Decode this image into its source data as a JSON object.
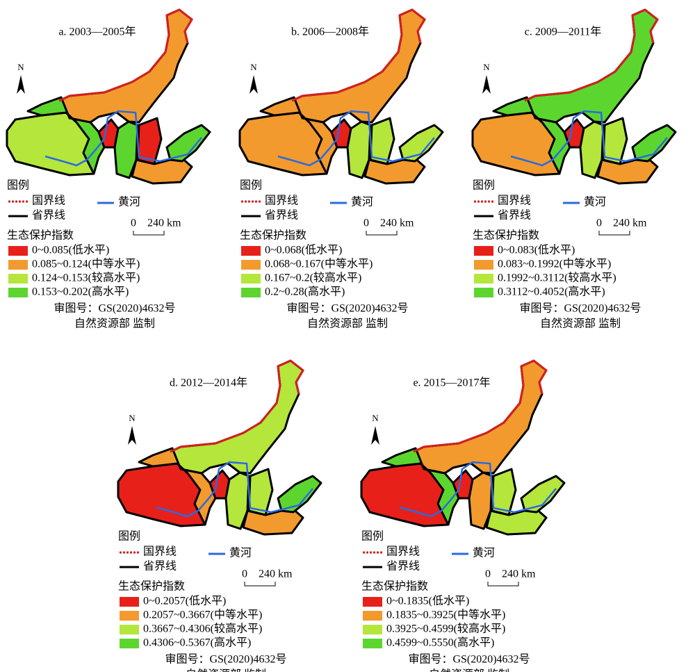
{
  "legend": {
    "title": "图例",
    "border": "国界线",
    "river": "黄河",
    "province": "省界线",
    "scale_start": "0",
    "scale_end": "240 km",
    "index_title": "生态保护指数",
    "north": "N",
    "review": "审图号：GS(2020)4632号",
    "supervisor": "自然资源部 监制"
  },
  "panels": [
    {
      "title": "a. 2003—2005年",
      "classes": [
        {
          "label": "0~0.085(低水平)",
          "color": "#e8201a"
        },
        {
          "label": "0.085~0.124(中等水平)",
          "color": "#f29a2e"
        },
        {
          "label": "0.124~0.153(较高水平)",
          "color": "#b4e63c"
        },
        {
          "label": "0.153~0.202(高水平)",
          "color": "#5cd62e"
        }
      ],
      "region_colors": [
        "#f29a2e",
        "#b4e63c",
        "#5cd62e",
        "#e8201a",
        "#5cd62e",
        "#e8201a",
        "#f29a2e",
        "#5cd62e"
      ]
    },
    {
      "title": "b. 2006—2008年",
      "classes": [
        {
          "label": "0~0.068(低水平)",
          "color": "#e8201a"
        },
        {
          "label": "0.068~0.167(中等水平)",
          "color": "#f29a2e"
        },
        {
          "label": "0.167~0.2(较高水平)",
          "color": "#b4e63c"
        },
        {
          "label": "0.2~0.28(高水平)",
          "color": "#5cd62e"
        }
      ],
      "region_colors": [
        "#f29a2e",
        "#f29a2e",
        "#f29a2e",
        "#e8201a",
        "#b4e63c",
        "#b4e63c",
        "#f29a2e",
        "#b4e63c"
      ]
    },
    {
      "title": "c. 2009—2011年",
      "classes": [
        {
          "label": "0~0.083(低水平)",
          "color": "#e8201a"
        },
        {
          "label": "0.083~0.1992(中等水平)",
          "color": "#f29a2e"
        },
        {
          "label": "0.1992~0.3112(较高水平)",
          "color": "#b4e63c"
        },
        {
          "label": "0.3112~0.4052(高水平)",
          "color": "#5cd62e"
        }
      ],
      "region_colors": [
        "#5cd62e",
        "#f29a2e",
        "#5cd62e",
        "#e8201a",
        "#b4e63c",
        "#b4e63c",
        "#f29a2e",
        "#5cd62e"
      ]
    },
    {
      "title": "d. 2012—2014年",
      "classes": [
        {
          "label": "0~0.2057(低水平)",
          "color": "#e8201a"
        },
        {
          "label": "0.2057~0.3667(中等水平)",
          "color": "#f29a2e"
        },
        {
          "label": "0.3667~0.4306(较高水平)",
          "color": "#b4e63c"
        },
        {
          "label": "0.4306~0.5367(高水平)",
          "color": "#5cd62e"
        }
      ],
      "region_colors": [
        "#b4e63c",
        "#e8201a",
        "#f29a2e",
        "#e8201a",
        "#b4e63c",
        "#b4e63c",
        "#f29a2e",
        "#5cd62e"
      ]
    },
    {
      "title": "e. 2015—2017年",
      "classes": [
        {
          "label": "0~0.1835(低水平)",
          "color": "#e8201a"
        },
        {
          "label": "0.1835~0.3925(中等水平)",
          "color": "#f29a2e"
        },
        {
          "label": "0.3925~0.4599(较高水平)",
          "color": "#b4e63c"
        },
        {
          "label": "0.4599~0.5550(高水平)",
          "color": "#5cd62e"
        }
      ],
      "region_colors": [
        "#f29a2e",
        "#e8201a",
        "#5cd62e",
        "#e8201a",
        "#f29a2e",
        "#b4e63c",
        "#b4e63c",
        "#b4e63c"
      ]
    }
  ]
}
